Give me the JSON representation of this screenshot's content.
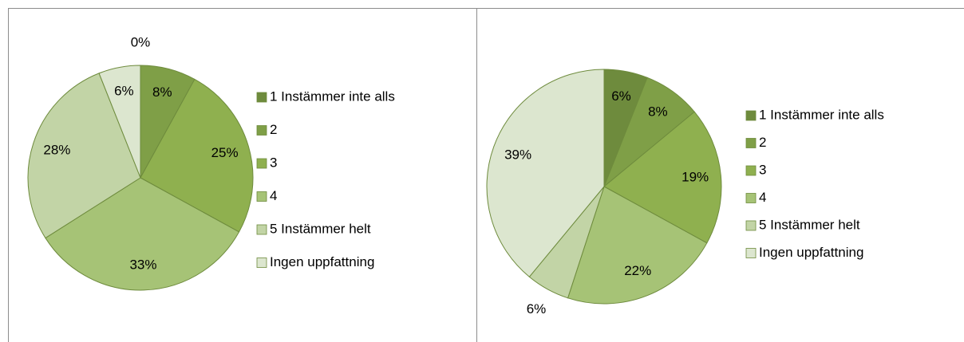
{
  "chart_data": [
    {
      "type": "pie",
      "categories": [
        "1 Instämmer inte alls",
        "2",
        "3",
        "4",
        "5 Instämmer helt",
        "Ingen uppfattning"
      ],
      "values": [
        0,
        8,
        25,
        33,
        28,
        6
      ],
      "value_labels": [
        "0%",
        "8%",
        "25%",
        "33%",
        "28%",
        "6%"
      ],
      "colors": [
        "#6e8b3d",
        "#7f9f47",
        "#8fb04f",
        "#a6c376",
        "#c2d4a6",
        "#dce6cf"
      ]
    },
    {
      "type": "pie",
      "categories": [
        "1 Instämmer inte alls",
        "2",
        "3",
        "4",
        "5 Instämmer helt",
        "Ingen uppfattning"
      ],
      "values": [
        6,
        8,
        19,
        22,
        6,
        39
      ],
      "value_labels": [
        "6%",
        "8%",
        "19%",
        "22%",
        "6%",
        "39%"
      ],
      "colors": [
        "#6e8b3d",
        "#7f9f47",
        "#8fb04f",
        "#a6c376",
        "#c2d4a6",
        "#dce6cf"
      ]
    }
  ]
}
